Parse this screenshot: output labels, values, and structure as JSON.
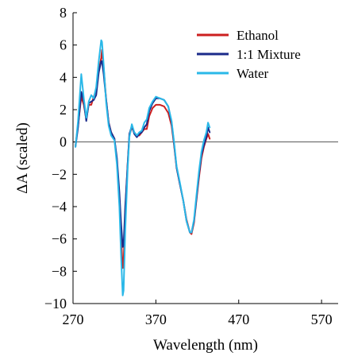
{
  "chart_data": {
    "type": "line",
    "title": "",
    "xlabel": "Wavelength (nm)",
    "ylabel": "ΔA (scaled)",
    "xlim": [
      270,
      590
    ],
    "ylim": [
      -10,
      8
    ],
    "xticks": [
      270,
      370,
      470,
      570
    ],
    "yticks": [
      8,
      6,
      4,
      2,
      0,
      -2,
      -4,
      -6,
      -8,
      -10
    ],
    "xtick_labels": [
      "270",
      "370",
      "470",
      "570"
    ],
    "ytick_labels": [
      "8",
      "6",
      "4",
      "2",
      "0",
      "−2",
      "−4",
      "−6",
      "−8",
      "−10"
    ],
    "zero_line": true,
    "grid": false,
    "legend_position": "top-right",
    "series": [
      {
        "name": "Ethanol",
        "color": "#cc1f1f",
        "points": [
          [
            273,
            -0.2
          ],
          [
            276,
            1.0
          ],
          [
            280,
            2.8
          ],
          [
            283,
            2.3
          ],
          [
            286,
            1.4
          ],
          [
            289,
            2.3
          ],
          [
            292,
            2.3
          ],
          [
            295,
            2.8
          ],
          [
            298,
            3.2
          ],
          [
            301,
            4.4
          ],
          [
            304,
            5.2
          ],
          [
            305,
            5.7
          ],
          [
            307,
            4.6
          ],
          [
            310,
            2.6
          ],
          [
            313,
            1.2
          ],
          [
            316,
            0.6
          ],
          [
            320,
            0.2
          ],
          [
            323,
            -1.2
          ],
          [
            326,
            -3.5
          ],
          [
            328,
            -5.8
          ],
          [
            330,
            -7.8
          ],
          [
            331,
            -7.5
          ],
          [
            333,
            -4.3
          ],
          [
            336,
            -1.3
          ],
          [
            338,
            0.4
          ],
          [
            341,
            0.9
          ],
          [
            344,
            0.6
          ],
          [
            347,
            0.4
          ],
          [
            350,
            0.4
          ],
          [
            353,
            0.6
          ],
          [
            356,
            0.8
          ],
          [
            359,
            0.8
          ],
          [
            362,
            1.6
          ],
          [
            366,
            2.1
          ],
          [
            370,
            2.3
          ],
          [
            375,
            2.3
          ],
          [
            380,
            2.2
          ],
          [
            385,
            1.8
          ],
          [
            389,
            1.0
          ],
          [
            392,
            -0.2
          ],
          [
            395,
            -1.6
          ],
          [
            399,
            -2.6
          ],
          [
            403,
            -3.6
          ],
          [
            407,
            -4.8
          ],
          [
            411,
            -5.6
          ],
          [
            413,
            -5.7
          ],
          [
            416,
            -5.0
          ],
          [
            419,
            -3.6
          ],
          [
            422,
            -2.2
          ],
          [
            425,
            -1.0
          ],
          [
            428,
            -0.3
          ],
          [
            431,
            0.2
          ],
          [
            433,
            0.5
          ],
          [
            435,
            0.2
          ]
        ]
      },
      {
        "name": "1:1 Mixture",
        "color": "#1a2a8a",
        "points": [
          [
            273,
            -0.3
          ],
          [
            276,
            0.9
          ],
          [
            280,
            3.1
          ],
          [
            283,
            2.5
          ],
          [
            286,
            1.3
          ],
          [
            289,
            2.4
          ],
          [
            292,
            2.5
          ],
          [
            295,
            2.6
          ],
          [
            298,
            2.9
          ],
          [
            301,
            4.3
          ],
          [
            304,
            5.0
          ],
          [
            305,
            5.0
          ],
          [
            307,
            4.2
          ],
          [
            310,
            2.6
          ],
          [
            313,
            1.2
          ],
          [
            316,
            0.6
          ],
          [
            320,
            0.2
          ],
          [
            323,
            -1.0
          ],
          [
            326,
            -3.1
          ],
          [
            328,
            -5.0
          ],
          [
            330,
            -6.5
          ],
          [
            331,
            -6.4
          ],
          [
            333,
            -4.0
          ],
          [
            336,
            -1.3
          ],
          [
            338,
            0.5
          ],
          [
            341,
            1.0
          ],
          [
            344,
            0.5
          ],
          [
            347,
            0.3
          ],
          [
            350,
            0.5
          ],
          [
            353,
            0.6
          ],
          [
            356,
            0.9
          ],
          [
            359,
            1.1
          ],
          [
            362,
            1.9
          ],
          [
            366,
            2.4
          ],
          [
            370,
            2.7
          ],
          [
            375,
            2.7
          ],
          [
            380,
            2.6
          ],
          [
            385,
            2.2
          ],
          [
            389,
            1.2
          ],
          [
            392,
            -0.1
          ],
          [
            395,
            -1.6
          ],
          [
            399,
            -2.6
          ],
          [
            403,
            -3.6
          ],
          [
            407,
            -4.9
          ],
          [
            411,
            -5.6
          ],
          [
            413,
            -5.6
          ],
          [
            416,
            -4.9
          ],
          [
            419,
            -3.5
          ],
          [
            422,
            -2.0
          ],
          [
            425,
            -0.8
          ],
          [
            428,
            -0.2
          ],
          [
            431,
            0.3
          ],
          [
            433,
            0.9
          ],
          [
            435,
            0.6
          ]
        ]
      },
      {
        "name": "Water",
        "color": "#2ab8e8",
        "points": [
          [
            273,
            -0.3
          ],
          [
            276,
            1.3
          ],
          [
            280,
            4.2
          ],
          [
            283,
            2.7
          ],
          [
            286,
            1.5
          ],
          [
            289,
            2.5
          ],
          [
            292,
            2.9
          ],
          [
            295,
            2.7
          ],
          [
            298,
            3.4
          ],
          [
            301,
            5.0
          ],
          [
            304,
            6.3
          ],
          [
            305,
            6.2
          ],
          [
            307,
            4.8
          ],
          [
            310,
            2.4
          ],
          [
            313,
            1.0
          ],
          [
            316,
            0.4
          ],
          [
            320,
            0.1
          ],
          [
            323,
            -1.4
          ],
          [
            326,
            -4.0
          ],
          [
            328,
            -7.0
          ],
          [
            330,
            -9.5
          ],
          [
            331,
            -9.2
          ],
          [
            333,
            -5.5
          ],
          [
            336,
            -1.6
          ],
          [
            338,
            0.3
          ],
          [
            341,
            1.1
          ],
          [
            344,
            0.6
          ],
          [
            347,
            0.4
          ],
          [
            350,
            0.6
          ],
          [
            353,
            0.7
          ],
          [
            356,
            1.2
          ],
          [
            359,
            1.4
          ],
          [
            362,
            2.1
          ],
          [
            366,
            2.5
          ],
          [
            370,
            2.8
          ],
          [
            375,
            2.7
          ],
          [
            380,
            2.6
          ],
          [
            385,
            2.2
          ],
          [
            389,
            1.3
          ],
          [
            392,
            0.0
          ],
          [
            395,
            -1.5
          ],
          [
            399,
            -2.5
          ],
          [
            403,
            -3.6
          ],
          [
            407,
            -4.9
          ],
          [
            411,
            -5.6
          ],
          [
            413,
            -5.6
          ],
          [
            416,
            -4.8
          ],
          [
            419,
            -3.3
          ],
          [
            422,
            -1.8
          ],
          [
            425,
            -0.6
          ],
          [
            428,
            0.1
          ],
          [
            431,
            0.6
          ],
          [
            433,
            1.2
          ],
          [
            435,
            0.9
          ]
        ]
      }
    ]
  }
}
